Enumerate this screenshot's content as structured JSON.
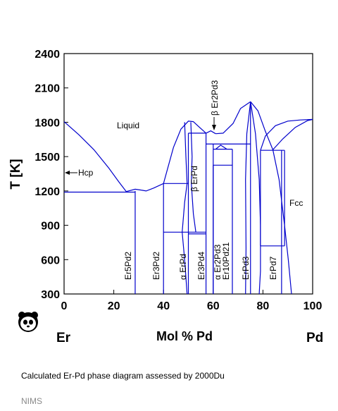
{
  "chart_data": {
    "type": "phase-diagram",
    "ylabel": "T [K]",
    "xlabel": "Mol % Pd",
    "x_end_left": "Er",
    "x_end_right": "Pd",
    "xlim": [
      0,
      100
    ],
    "ylim": [
      300,
      2400
    ],
    "x_ticks": [
      0,
      20,
      40,
      60,
      80,
      100
    ],
    "y_ticks": [
      300,
      600,
      900,
      1200,
      1500,
      1800,
      2100,
      2400
    ],
    "line_color": "#0000cc",
    "regions": [
      {
        "label": "Liquid",
        "x": 27,
        "T": 1750
      },
      {
        "label": "Fcc",
        "x": 94,
        "T": 1090
      }
    ],
    "annotations": [
      {
        "label": "Hcp",
        "arrow_to": [
          0,
          1360
        ],
        "text_at": [
          5.5,
          1340
        ]
      },
      {
        "label": "β Er2Pd3",
        "arrow_to": [
          60.8,
          1740
        ],
        "text_at": [
          60.8,
          1880
        ],
        "vertical": true
      }
    ],
    "compounds": [
      {
        "label": "Er5Pd2",
        "x": 28.6,
        "T_max": 1200
      },
      {
        "label": "Er3Pd2",
        "x": 40,
        "T_max": 1265
      },
      {
        "label": "α ErPd",
        "x": 50,
        "T_max": 840
      },
      {
        "label": "β ErPd",
        "x": 50,
        "T_min": 840,
        "T_max": 1705
      },
      {
        "label": "Er3Pd4",
        "x": 57.1,
        "T_max": 1705
      },
      {
        "label": "α Er2Pd3",
        "x": 60,
        "T_max": 1425
      },
      {
        "label": "Er10Pd21",
        "x": 67.7,
        "T_max": 1565
      },
      {
        "label": "ErPd3",
        "x": 75,
        "T_max": 1980
      },
      {
        "label": "ErPd7",
        "x": 87.5,
        "T_max": 1555
      }
    ],
    "invariant_lines_T": [
      {
        "T": 1190,
        "x": [
          0,
          28.6
        ]
      },
      {
        "T": 1265,
        "x": [
          40,
          50
        ]
      },
      {
        "T": 840,
        "x": [
          40,
          57.1
        ]
      },
      {
        "T": 825,
        "x": [
          50,
          57.1
        ]
      },
      {
        "T": 1705,
        "x": [
          50,
          57.1
        ]
      },
      {
        "T": 1610,
        "x": [
          57.1,
          75
        ]
      },
      {
        "T": 1565,
        "x": [
          60,
          67.7
        ]
      },
      {
        "T": 1425,
        "x": [
          60,
          67.7
        ]
      },
      {
        "T": 1555,
        "x": [
          79,
          88.7
        ]
      },
      {
        "T": 720,
        "x": [
          79,
          88.7
        ]
      }
    ]
  },
  "caption": "Calculated Er-Pd phase diagram assessed by 2000Du",
  "credit": "NIMS",
  "logo_icon": "panda-logo-icon"
}
